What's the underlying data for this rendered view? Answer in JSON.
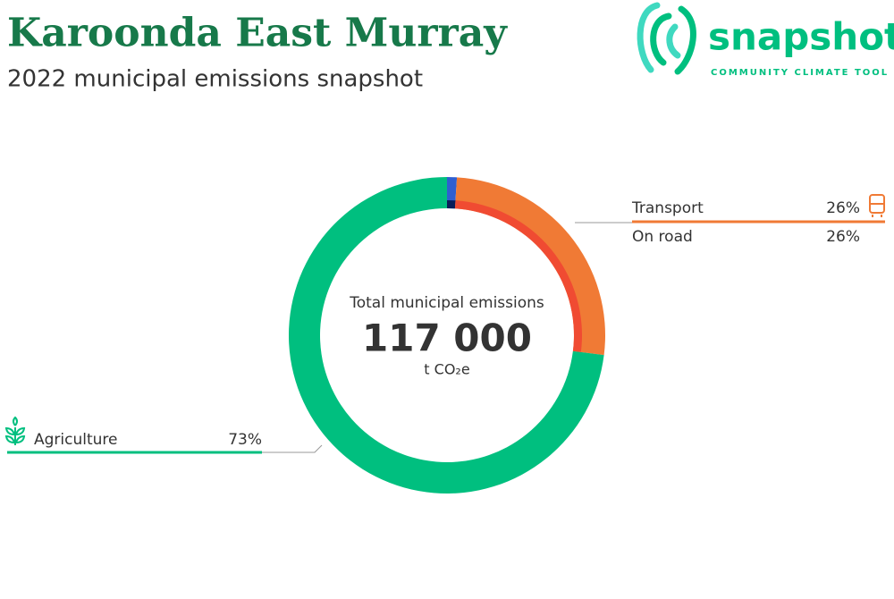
{
  "logo": {
    "name": "snapshot",
    "tagline": "COMMUNITY CLIMATE TOOL"
  },
  "chart_data": {
    "type": "donut",
    "title": "Karoonda East Murray",
    "subtitle": "2022 municipal emissions snapshot",
    "center_label": "Total municipal emissions",
    "total": {
      "value": 117000,
      "label": "117 000"
    },
    "unit": "t CO₂e",
    "categories": [
      null,
      "Transport",
      "Agriculture"
    ],
    "values": [
      1,
      26,
      73
    ],
    "value_labels": [
      null,
      "26%",
      "73%"
    ],
    "colors": [
      "#2f5fd0",
      "#f07a35",
      "#00bf7f"
    ],
    "inner": {
      "categories": [
        null,
        "On road"
      ],
      "values": [
        1,
        26
      ],
      "value_labels": [
        null,
        "26%"
      ],
      "colors": [
        "#0b1d59",
        "#f04b32"
      ]
    }
  }
}
